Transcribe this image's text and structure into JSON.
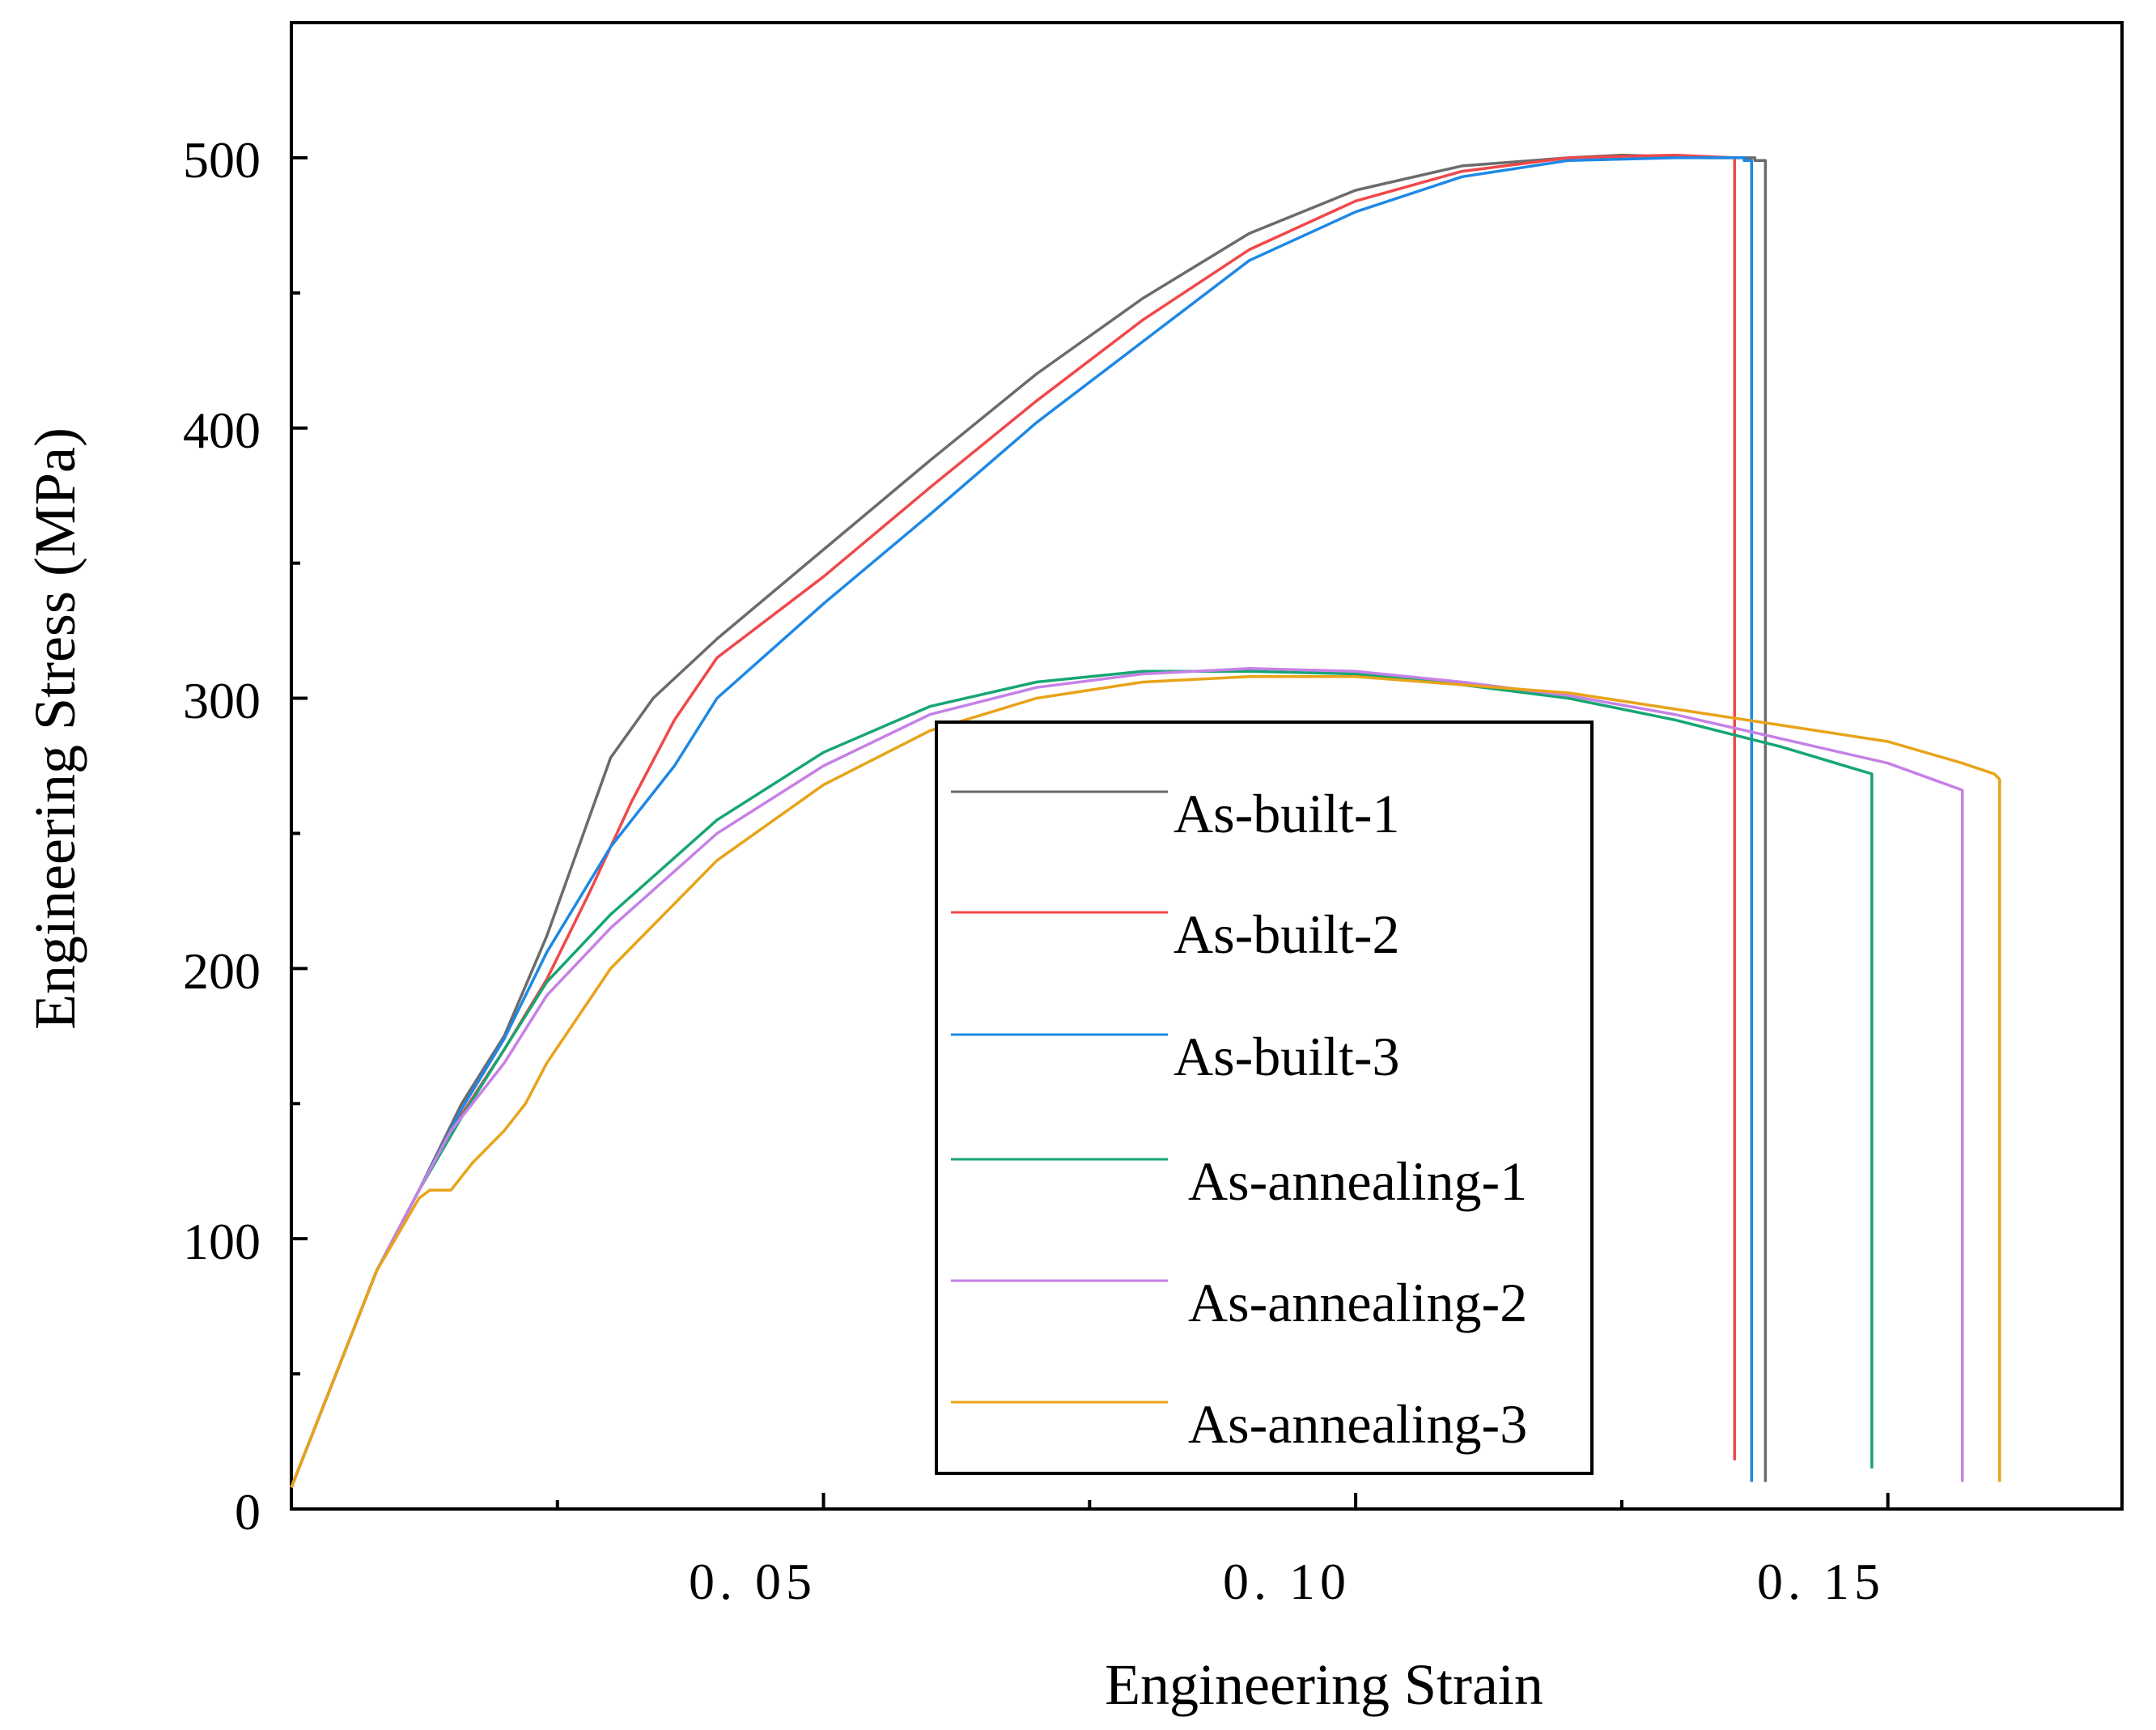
{
  "chart_data": {
    "type": "line",
    "title": "",
    "xlabel": "Engineering Strain",
    "ylabel": "Engineering Stress (MPa)",
    "xlim": [
      0.0,
      0.172
    ],
    "ylim": [
      0,
      550
    ],
    "xticks": [
      0.05,
      0.1,
      0.15
    ],
    "xtick_labels": [
      "0. 05",
      "0. 10",
      "0. 15"
    ],
    "yticks": [
      0,
      100,
      200,
      300,
      400,
      500
    ],
    "ytick_labels": [
      "0",
      "100",
      "200",
      "300",
      "400",
      "500"
    ],
    "grid": false,
    "legend_position": "center",
    "series": [
      {
        "name": "As-built-1",
        "color": "#6b6b6b",
        "points": [
          [
            0.0,
            8
          ],
          [
            0.004,
            48
          ],
          [
            0.008,
            88
          ],
          [
            0.012,
            118
          ],
          [
            0.016,
            150
          ],
          [
            0.02,
            175
          ],
          [
            0.024,
            212
          ],
          [
            0.028,
            256
          ],
          [
            0.03,
            278
          ],
          [
            0.034,
            300
          ],
          [
            0.04,
            322
          ],
          [
            0.05,
            355
          ],
          [
            0.06,
            388
          ],
          [
            0.07,
            420
          ],
          [
            0.08,
            448
          ],
          [
            0.09,
            472
          ],
          [
            0.1,
            488
          ],
          [
            0.11,
            497
          ],
          [
            0.12,
            500
          ],
          [
            0.125,
            501
          ],
          [
            0.133,
            500
          ],
          [
            0.1375,
            500
          ],
          [
            0.1375,
            499
          ],
          [
            0.1385,
            499
          ],
          [
            0.1385,
            10
          ]
        ]
      },
      {
        "name": "As-built-2",
        "color": "#f0484a",
        "points": [
          [
            0.0,
            8
          ],
          [
            0.004,
            48
          ],
          [
            0.008,
            88
          ],
          [
            0.012,
            118
          ],
          [
            0.016,
            146
          ],
          [
            0.02,
            170
          ],
          [
            0.024,
            196
          ],
          [
            0.028,
            228
          ],
          [
            0.032,
            262
          ],
          [
            0.036,
            292
          ],
          [
            0.04,
            315
          ],
          [
            0.05,
            345
          ],
          [
            0.06,
            378
          ],
          [
            0.07,
            410
          ],
          [
            0.08,
            440
          ],
          [
            0.09,
            466
          ],
          [
            0.1,
            484
          ],
          [
            0.11,
            495
          ],
          [
            0.12,
            500
          ],
          [
            0.13,
            501
          ],
          [
            0.1356,
            500
          ],
          [
            0.1356,
            18
          ]
        ]
      },
      {
        "name": "As-built-3",
        "color": "#1e88e5",
        "points": [
          [
            0.0,
            8
          ],
          [
            0.004,
            48
          ],
          [
            0.008,
            88
          ],
          [
            0.012,
            118
          ],
          [
            0.016,
            148
          ],
          [
            0.02,
            174
          ],
          [
            0.024,
            206
          ],
          [
            0.03,
            245
          ],
          [
            0.036,
            275
          ],
          [
            0.04,
            300
          ],
          [
            0.05,
            335
          ],
          [
            0.06,
            368
          ],
          [
            0.07,
            402
          ],
          [
            0.08,
            432
          ],
          [
            0.09,
            462
          ],
          [
            0.1,
            480
          ],
          [
            0.11,
            493
          ],
          [
            0.12,
            499
          ],
          [
            0.13,
            500
          ],
          [
            0.1365,
            500
          ],
          [
            0.1365,
            499
          ],
          [
            0.1372,
            499
          ],
          [
            0.1372,
            10
          ]
        ]
      },
      {
        "name": "As-annealing-1",
        "color": "#17a673",
        "points": [
          [
            0.0,
            8
          ],
          [
            0.004,
            48
          ],
          [
            0.008,
            88
          ],
          [
            0.012,
            118
          ],
          [
            0.016,
            145
          ],
          [
            0.02,
            170
          ],
          [
            0.024,
            195
          ],
          [
            0.03,
            220
          ],
          [
            0.04,
            255
          ],
          [
            0.05,
            280
          ],
          [
            0.06,
            297
          ],
          [
            0.07,
            306
          ],
          [
            0.08,
            310
          ],
          [
            0.09,
            310
          ],
          [
            0.1,
            309
          ],
          [
            0.11,
            305
          ],
          [
            0.12,
            300
          ],
          [
            0.13,
            292
          ],
          [
            0.14,
            282
          ],
          [
            0.1485,
            272
          ],
          [
            0.1485,
            15
          ]
        ]
      },
      {
        "name": "As-annealing-2",
        "color": "#c681e6",
        "points": [
          [
            0.0,
            8
          ],
          [
            0.004,
            48
          ],
          [
            0.008,
            88
          ],
          [
            0.012,
            118
          ],
          [
            0.015,
            140
          ],
          [
            0.017,
            150
          ],
          [
            0.02,
            165
          ],
          [
            0.024,
            190
          ],
          [
            0.03,
            215
          ],
          [
            0.04,
            250
          ],
          [
            0.05,
            275
          ],
          [
            0.06,
            294
          ],
          [
            0.07,
            304
          ],
          [
            0.08,
            309
          ],
          [
            0.09,
            311
          ],
          [
            0.1,
            310
          ],
          [
            0.11,
            306
          ],
          [
            0.12,
            301
          ],
          [
            0.13,
            294
          ],
          [
            0.14,
            285
          ],
          [
            0.15,
            276
          ],
          [
            0.157,
            266
          ],
          [
            0.157,
            10
          ]
        ]
      },
      {
        "name": "As-annealing-3",
        "color": "#e8a318",
        "points": [
          [
            0.0,
            8
          ],
          [
            0.004,
            48
          ],
          [
            0.008,
            88
          ],
          [
            0.012,
            115
          ],
          [
            0.013,
            118
          ],
          [
            0.015,
            118
          ],
          [
            0.017,
            128
          ],
          [
            0.02,
            140
          ],
          [
            0.022,
            150
          ],
          [
            0.024,
            165
          ],
          [
            0.03,
            200
          ],
          [
            0.04,
            240
          ],
          [
            0.05,
            268
          ],
          [
            0.06,
            288
          ],
          [
            0.07,
            300
          ],
          [
            0.08,
            306
          ],
          [
            0.09,
            308
          ],
          [
            0.1,
            308
          ],
          [
            0.11,
            305
          ],
          [
            0.12,
            302
          ],
          [
            0.13,
            296
          ],
          [
            0.14,
            290
          ],
          [
            0.15,
            284
          ],
          [
            0.157,
            276
          ],
          [
            0.16,
            272
          ],
          [
            0.1605,
            270
          ],
          [
            0.1605,
            195
          ],
          [
            0.1605,
            10
          ]
        ]
      }
    ]
  }
}
